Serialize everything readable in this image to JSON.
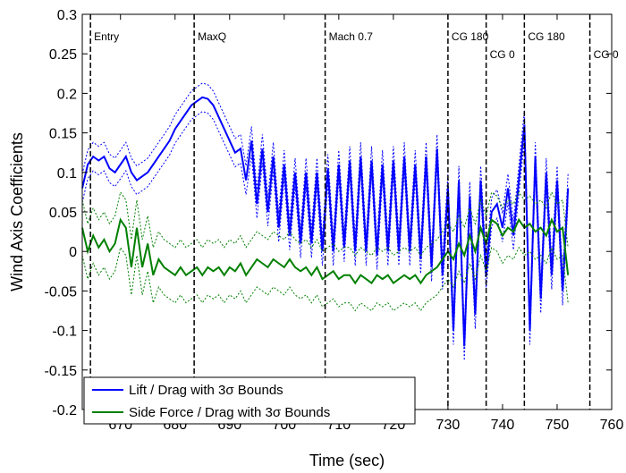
{
  "chart_data": {
    "type": "line",
    "xlabel": "Time (sec)",
    "ylabel": "Wind Axis Coefficients",
    "xlim": [
      663,
      760
    ],
    "ylim": [
      -0.2,
      0.3
    ],
    "x_ticks": [
      670,
      680,
      690,
      700,
      710,
      720,
      730,
      740,
      750,
      760
    ],
    "x_tick_labels": [
      "670",
      "680",
      "690",
      "700",
      "710",
      "720",
      "730",
      "740",
      "750",
      "760"
    ],
    "y_ticks": [
      -0.2,
      -0.15,
      -0.1,
      -0.05,
      0,
      0.05,
      0.1,
      0.15,
      0.2,
      0.25,
      0.3
    ],
    "y_tick_labels": [
      "-0.2",
      "-0.15",
      "-0.1",
      "-0.05",
      "0",
      "0.05",
      "0.1",
      "0.15",
      "0.2",
      "0.25",
      "0.3"
    ],
    "grid": false,
    "legend_position": "bottom-left",
    "colors": {
      "lift": "#0000ff",
      "side": "#008000",
      "events": "#000000"
    },
    "events": [
      {
        "label": "Entry",
        "x": 664.5,
        "row": 1
      },
      {
        "label": "MaxQ",
        "x": 683.5,
        "row": 1
      },
      {
        "label": "Mach 0.7",
        "x": 707.5,
        "row": 1
      },
      {
        "label": "CG 180",
        "x": 730.0,
        "row": 1
      },
      {
        "label": "CG 0",
        "x": 737.0,
        "row": 2
      },
      {
        "label": "CG 180",
        "x": 744.0,
        "row": 1
      },
      {
        "label": "CG 0",
        "x": 756.0,
        "row": 2
      }
    ],
    "series": [
      {
        "name": "Lift / Drag with 3σ Bounds",
        "color": "#0000ff",
        "x": [
          663.0,
          664.0,
          665.0,
          666.0,
          667.0,
          668.0,
          669.0,
          670.0,
          671.0,
          672.0,
          673.0,
          674.0,
          675.0,
          676.0,
          677.0,
          678.0,
          679.0,
          680.0,
          681.0,
          682.0,
          683.0,
          684.0,
          685.0,
          686.0,
          687.0,
          688.0,
          689.0,
          690.0,
          691.0,
          692.0,
          693.0,
          694.0,
          695.0,
          696.0,
          697.0,
          698.0,
          699.0,
          700.0,
          701.0,
          702.0,
          703.0,
          704.0,
          705.0,
          706.0,
          707.0,
          708.0,
          709.0,
          710.0,
          711.0,
          712.0,
          713.0,
          714.0,
          715.0,
          716.0,
          717.0,
          718.0,
          719.0,
          720.0,
          721.0,
          722.0,
          723.0,
          724.0,
          725.0,
          726.0,
          727.0,
          728.0,
          729.0,
          730.0,
          731.0,
          732.0,
          733.0,
          734.0,
          735.0,
          736.0,
          737.0,
          738.0,
          739.0,
          740.0,
          741.0,
          742.0,
          743.0,
          744.0,
          745.0,
          746.0,
          747.0,
          748.0,
          749.0,
          750.0,
          751.0,
          752.0
        ],
        "y": [
          0.08,
          0.11,
          0.12,
          0.115,
          0.12,
          0.105,
          0.1,
          0.11,
          0.12,
          0.1,
          0.09,
          0.095,
          0.1,
          0.11,
          0.12,
          0.13,
          0.14,
          0.155,
          0.165,
          0.175,
          0.185,
          0.19,
          0.195,
          0.193,
          0.185,
          0.17,
          0.155,
          0.14,
          0.125,
          0.13,
          0.09,
          0.14,
          0.06,
          0.13,
          0.05,
          0.12,
          0.03,
          0.11,
          0.02,
          0.1,
          0.01,
          0.1,
          0.01,
          0.1,
          0.0,
          0.105,
          0.0,
          0.11,
          0.005,
          0.115,
          0.0,
          0.12,
          0.0,
          0.115,
          -0.005,
          0.11,
          0.0,
          0.115,
          0.0,
          0.12,
          0.0,
          0.11,
          -0.01,
          0.12,
          -0.02,
          0.13,
          -0.03,
          0.08,
          -0.1,
          0.09,
          -0.12,
          0.07,
          -0.08,
          0.09,
          -0.03,
          0.05,
          0.06,
          0.03,
          0.08,
          0.02,
          0.09,
          0.16,
          -0.1,
          0.12,
          -0.06,
          0.1,
          -0.03,
          0.09,
          -0.05,
          0.08
        ],
        "band": 0.018
      },
      {
        "name": "Side Force / Drag with 3σ Bounds",
        "color": "#008000",
        "x": [
          663.0,
          664.0,
          665.0,
          666.0,
          667.0,
          668.0,
          669.0,
          670.0,
          671.0,
          672.0,
          673.0,
          674.0,
          675.0,
          676.0,
          677.0,
          678.0,
          679.0,
          680.0,
          681.0,
          682.0,
          683.0,
          684.0,
          685.0,
          686.0,
          687.0,
          688.0,
          689.0,
          690.0,
          691.0,
          692.0,
          693.0,
          694.0,
          695.0,
          696.0,
          697.0,
          698.0,
          699.0,
          700.0,
          701.0,
          702.0,
          703.0,
          704.0,
          705.0,
          706.0,
          707.0,
          708.0,
          709.0,
          710.0,
          711.0,
          712.0,
          713.0,
          714.0,
          715.0,
          716.0,
          717.0,
          718.0,
          719.0,
          720.0,
          721.0,
          722.0,
          723.0,
          724.0,
          725.0,
          726.0,
          727.0,
          728.0,
          729.0,
          730.0,
          731.0,
          732.0,
          733.0,
          734.0,
          735.0,
          736.0,
          737.0,
          738.0,
          739.0,
          740.0,
          741.0,
          742.0,
          743.0,
          744.0,
          745.0,
          746.0,
          747.0,
          748.0,
          749.0,
          750.0,
          751.0,
          752.0
        ],
        "y": [
          0.03,
          0.0,
          0.02,
          0.005,
          0.015,
          0.0,
          0.01,
          0.04,
          0.03,
          -0.02,
          0.03,
          -0.02,
          0.01,
          -0.03,
          -0.01,
          -0.02,
          -0.025,
          -0.03,
          -0.02,
          -0.03,
          -0.025,
          -0.02,
          -0.03,
          -0.02,
          -0.025,
          -0.02,
          -0.03,
          -0.02,
          -0.025,
          -0.015,
          -0.03,
          -0.02,
          -0.01,
          -0.015,
          -0.02,
          -0.01,
          -0.015,
          -0.02,
          -0.01,
          -0.02,
          -0.025,
          -0.02,
          -0.03,
          -0.02,
          -0.035,
          -0.03,
          -0.025,
          -0.035,
          -0.03,
          -0.03,
          -0.04,
          -0.03,
          -0.035,
          -0.04,
          -0.03,
          -0.035,
          -0.03,
          -0.04,
          -0.035,
          -0.03,
          -0.035,
          -0.03,
          -0.04,
          -0.03,
          -0.025,
          -0.02,
          -0.01,
          0.0,
          -0.01,
          0.01,
          -0.005,
          0.02,
          0.0,
          0.03,
          0.01,
          0.04,
          0.035,
          0.02,
          0.03,
          0.025,
          0.04,
          0.03,
          0.035,
          0.025,
          0.03,
          0.02,
          0.04,
          0.025,
          0.03,
          -0.03
        ],
        "band": 0.035
      }
    ]
  }
}
